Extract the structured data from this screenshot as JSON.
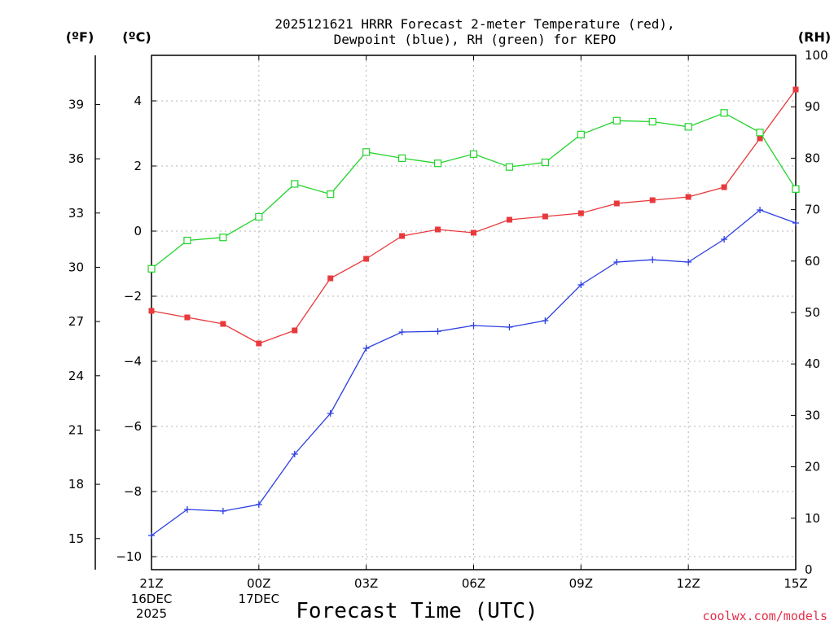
{
  "chart_data": {
    "type": "line",
    "title_line1": "2025121621 HRRR Forecast 2-meter Temperature (red),",
    "title_line2": "Dewpoint (blue), RH (green) for KEPO",
    "xlabel": "Forecast Time (UTC)",
    "credit": "coolwx.com/models",
    "units": {
      "fahrenheit": "(ºF)",
      "celsius": "(ºC)",
      "rh": "(RH)"
    },
    "x_ticks": [
      {
        "hour": 0,
        "label": "21Z",
        "sub1": "16DEC",
        "sub2": "2025"
      },
      {
        "hour": 3,
        "label": "00Z",
        "sub1": "17DEC",
        "sub2": ""
      },
      {
        "hour": 6,
        "label": "03Z",
        "sub1": "",
        "sub2": ""
      },
      {
        "hour": 9,
        "label": "06Z",
        "sub1": "",
        "sub2": ""
      },
      {
        "hour": 12,
        "label": "09Z",
        "sub1": "",
        "sub2": ""
      },
      {
        "hour": 15,
        "label": "12Z",
        "sub1": "",
        "sub2": ""
      },
      {
        "hour": 18,
        "label": "15Z",
        "sub1": "",
        "sub2": ""
      }
    ],
    "xlim": [
      0,
      18
    ],
    "celsius_ylim": [
      -10.4,
      5.4
    ],
    "celsius_ticks": [
      "-10",
      "-8",
      "-6",
      "-4",
      "-2",
      "0",
      "2",
      "4"
    ],
    "fahrenheit_ticks": [
      "15",
      "18",
      "21",
      "24",
      "27",
      "30",
      "33",
      "36",
      "39"
    ],
    "rh_ylim": [
      0,
      100
    ],
    "rh_ticks": [
      "0",
      "10",
      "20",
      "30",
      "40",
      "50",
      "60",
      "70",
      "80",
      "90",
      "100"
    ],
    "hours": [
      0,
      1,
      2,
      3,
      4,
      5,
      6,
      7,
      8,
      9,
      10,
      11,
      12,
      13,
      14,
      15,
      16,
      17,
      18
    ],
    "series": [
      {
        "name": "2-meter Temperature",
        "unit": "C",
        "color": "#e8393c",
        "marker": "filled-square",
        "values": [
          -2.45,
          -2.65,
          -2.85,
          -3.45,
          -3.05,
          -1.45,
          -0.85,
          -0.15,
          0.05,
          -0.05,
          0.35,
          0.45,
          0.55,
          0.85,
          0.95,
          1.05,
          1.35,
          2.85,
          4.35
        ]
      },
      {
        "name": "Dewpoint",
        "unit": "C",
        "color": "#2c3fe0",
        "marker": "plus",
        "values": [
          -9.35,
          -8.55,
          -8.6,
          -8.4,
          -6.85,
          -5.6,
          -3.6,
          -3.1,
          -3.08,
          -2.9,
          -2.95,
          -2.75,
          -1.65,
          -0.95,
          -0.88,
          -0.95,
          -0.25,
          0.65,
          0.25
        ]
      },
      {
        "name": "Relative Humidity",
        "unit": "%",
        "color": "#22d32c",
        "marker": "open-square",
        "values": [
          58.5,
          64,
          64.6,
          68.6,
          75,
          73,
          81.2,
          80,
          79,
          80.8,
          78.3,
          79.2,
          84.6,
          87.3,
          87.1,
          86.1,
          88.8,
          85,
          74
        ]
      }
    ]
  }
}
